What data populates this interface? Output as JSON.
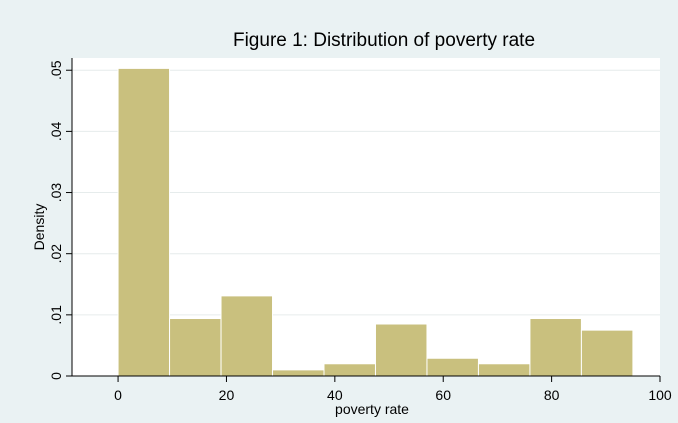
{
  "chart_data": {
    "type": "bar",
    "title": "Figure 1: Distribution of poverty rate",
    "xlabel": "poverty rate",
    "ylabel": "Density",
    "xlim": [
      -8.5,
      100
    ],
    "ylim": [
      0,
      0.052
    ],
    "xticks": [
      0,
      20,
      40,
      60,
      80,
      100
    ],
    "yticks": [
      0,
      0.01,
      0.02,
      0.03,
      0.04,
      0.05
    ],
    "ytick_labels": [
      "0",
      ".01",
      ".02",
      ".03",
      ".04",
      ".05"
    ],
    "bins": [
      {
        "start": 0.0,
        "end": 9.5,
        "density": 0.0503
      },
      {
        "start": 9.5,
        "end": 19.0,
        "density": 0.0094
      },
      {
        "start": 19.0,
        "end": 28.5,
        "density": 0.0131
      },
      {
        "start": 28.5,
        "end": 38.0,
        "density": 0.001
      },
      {
        "start": 38.0,
        "end": 47.5,
        "density": 0.002
      },
      {
        "start": 47.5,
        "end": 57.0,
        "density": 0.0085
      },
      {
        "start": 57.0,
        "end": 66.5,
        "density": 0.0029
      },
      {
        "start": 66.5,
        "end": 76.0,
        "density": 0.002
      },
      {
        "start": 76.0,
        "end": 85.5,
        "density": 0.0094
      },
      {
        "start": 85.5,
        "end": 95.0,
        "density": 0.0075
      }
    ],
    "grid": true,
    "colors": {
      "bar_fill": "#c9c07e",
      "bar_stroke": "#ffffff",
      "background": "#eaf2f3",
      "plot_area": "#ffffff",
      "grid": "#e6ecec"
    }
  }
}
